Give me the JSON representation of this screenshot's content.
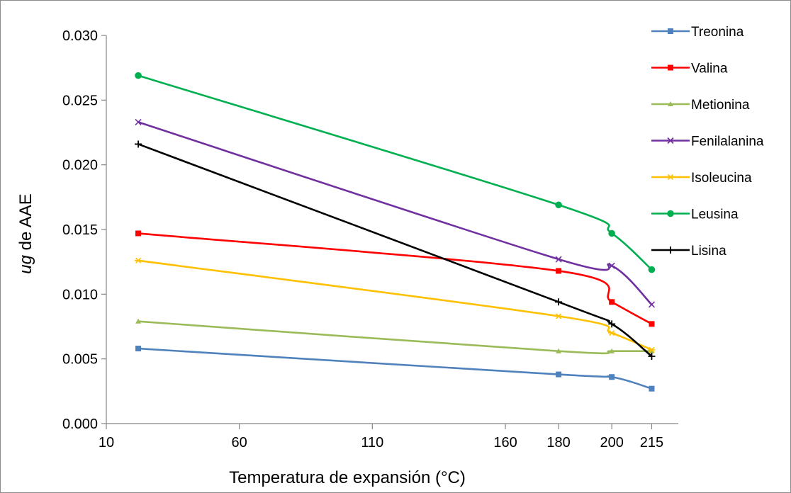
{
  "chart_data": {
    "type": "line",
    "title": "",
    "xlabel": "Temperatura de expansión (°C)",
    "ylabel_italic": "ug",
    "ylabel_rest": " de AAE",
    "xlim": [
      10,
      225
    ],
    "ylim": [
      0,
      0.03
    ],
    "x_tick_values": [
      10,
      60,
      110,
      160,
      180,
      200,
      215
    ],
    "x_tick_labels": [
      "10",
      "60",
      "110",
      "160",
      "180",
      "200",
      "215"
    ],
    "y_tick_values": [
      0,
      0.005,
      0.01,
      0.015,
      0.02,
      0.025,
      0.03
    ],
    "y_tick_labels": [
      "0.000",
      "0.005",
      "0.010",
      "0.015",
      "0.020",
      "0.025",
      "0.030"
    ],
    "grid": false,
    "legend_position": "right",
    "x": [
      22,
      180,
      200,
      215
    ],
    "series": [
      {
        "name": "Treonina",
        "color": "#4f81bd",
        "marker": "square",
        "values": [
          0.0058,
          0.0038,
          0.0036,
          0.0027
        ]
      },
      {
        "name": "Valina",
        "color": "#ff0000",
        "marker": "square",
        "values": [
          0.0147,
          0.0118,
          0.0094,
          0.0077
        ]
      },
      {
        "name": "Metionina",
        "color": "#9bbb59",
        "marker": "triangle",
        "values": [
          0.0079,
          0.0056,
          0.0056,
          0.0056
        ]
      },
      {
        "name": "Fenilalanina",
        "color": "#7030a0",
        "marker": "x",
        "values": [
          0.0233,
          0.0127,
          0.0122,
          0.0092
        ]
      },
      {
        "name": "Isoleucina",
        "color": "#ffc000",
        "marker": "star",
        "values": [
          0.0126,
          0.0083,
          0.007,
          0.0057
        ]
      },
      {
        "name": "Leusina",
        "color": "#00b050",
        "marker": "circle",
        "values": [
          0.0269,
          0.0169,
          0.0147,
          0.0119
        ]
      },
      {
        "name": "Lisina",
        "color": "#000000",
        "marker": "plus",
        "values": [
          0.0216,
          0.0094,
          0.0077,
          0.0052
        ]
      }
    ]
  }
}
